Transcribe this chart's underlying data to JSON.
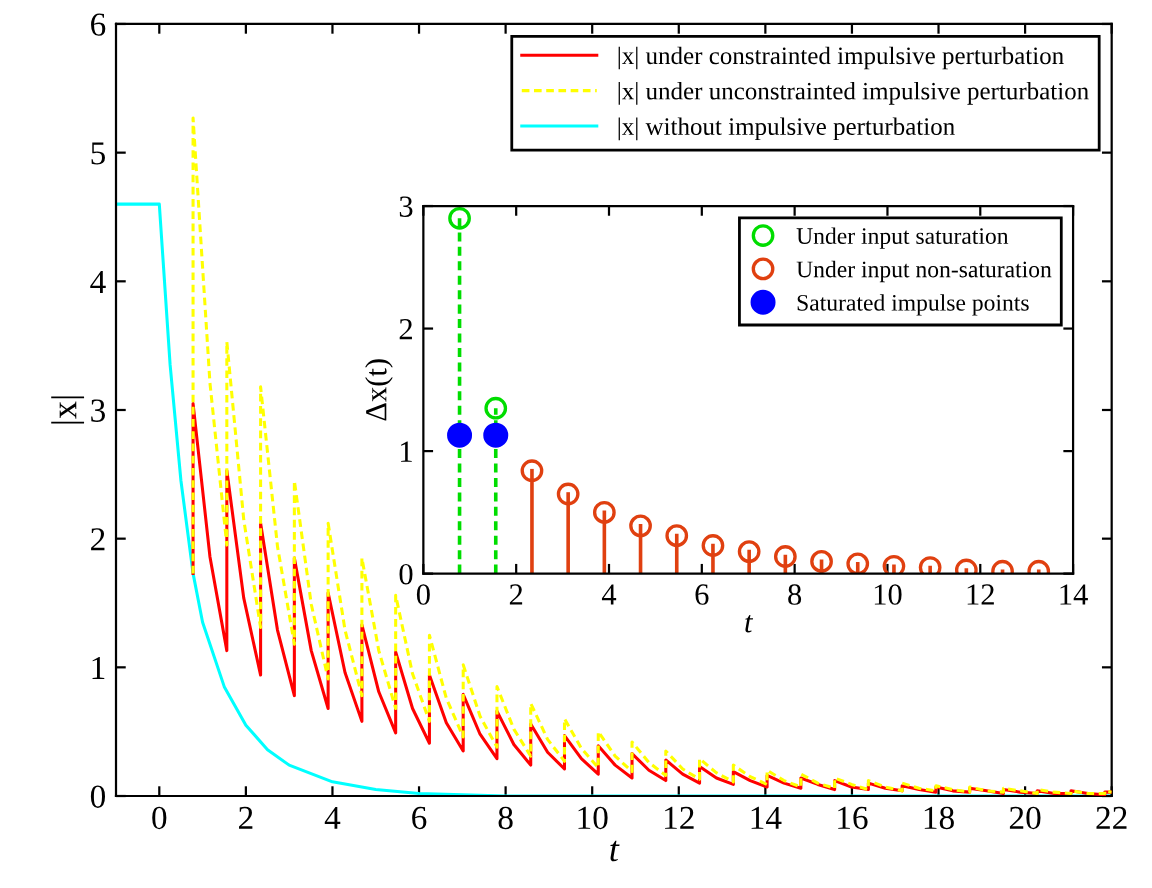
{
  "chart_data": [
    {
      "type": "line",
      "xlabel": "t",
      "ylabel": "|x|",
      "xlim": [
        -1,
        22
      ],
      "ylim": [
        0,
        6
      ],
      "xticks": [
        0,
        2,
        4,
        6,
        8,
        10,
        12,
        14,
        16,
        18,
        20,
        22
      ],
      "yticks": [
        0,
        1,
        2,
        3,
        4,
        5,
        6
      ],
      "legend": "top right",
      "series": [
        {
          "name": "|x| under constrainted impulsive perturbation",
          "color": "#ff0000",
          "line_style": "solid",
          "x": [
            0.78,
            0.78,
            1.17,
            1.56,
            1.56,
            1.95,
            2.34,
            2.34,
            2.73,
            3.12,
            3.12,
            3.51,
            3.9,
            3.9,
            4.29,
            4.68,
            4.68,
            5.07,
            5.46,
            5.46,
            5.85,
            6.24,
            6.24,
            6.63,
            7.02,
            7.02,
            7.41,
            7.8,
            7.8,
            8.19,
            8.58,
            8.58,
            8.97,
            9.36,
            9.36,
            9.75,
            10.14,
            10.14,
            10.53,
            10.92,
            10.92,
            11.31,
            11.7,
            11.7,
            12.09,
            12.48,
            12.48,
            12.87,
            13.26,
            13.26,
            13.65,
            14.04,
            14.04,
            14.43,
            14.82,
            14.82,
            15.21,
            15.6,
            15.6,
            15.99,
            16.38,
            16.38,
            16.77,
            17.16,
            17.16,
            17.55,
            17.94,
            17.94,
            18.33,
            18.72,
            18.72,
            19.11,
            19.5,
            19.5,
            19.89,
            20.28,
            20.28,
            20.67,
            21.06,
            21.06,
            21.45,
            21.84,
            21.84,
            22
          ],
          "values": [
            1.73,
            3.05,
            1.86,
            1.13,
            2.53,
            1.54,
            0.94,
            2.12,
            1.29,
            0.78,
            1.85,
            1.13,
            0.68,
            1.58,
            0.96,
            0.58,
            1.33,
            0.81,
            0.49,
            1.12,
            0.68,
            0.41,
            0.94,
            0.57,
            0.35,
            0.79,
            0.48,
            0.29,
            0.66,
            0.4,
            0.24,
            0.56,
            0.34,
            0.21,
            0.47,
            0.29,
            0.17,
            0.39,
            0.24,
            0.14,
            0.33,
            0.2,
            0.12,
            0.28,
            0.17,
            0.1,
            0.23,
            0.14,
            0.09,
            0.19,
            0.12,
            0.07,
            0.16,
            0.1,
            0.06,
            0.14,
            0.09,
            0.05,
            0.12,
            0.07,
            0.05,
            0.1,
            0.06,
            0.04,
            0.08,
            0.05,
            0.03,
            0.07,
            0.04,
            0.03,
            0.06,
            0.04,
            0.02,
            0.05,
            0.03,
            0.02,
            0.04,
            0.02,
            0.02,
            0.04,
            0.02,
            0.01,
            0.03,
            0.03
          ]
        },
        {
          "name": "|x| under unconstrainted impulsive perturbation",
          "color": "#ffff00",
          "line_style": "dashed",
          "x": [
            0.78,
            0.78,
            1.17,
            1.56,
            1.56,
            1.95,
            2.34,
            2.34,
            2.73,
            3.12,
            3.12,
            3.51,
            3.9,
            3.9,
            4.29,
            4.68,
            4.68,
            5.07,
            5.46,
            5.46,
            5.85,
            6.24,
            6.24,
            6.63,
            7.02,
            7.02,
            7.41,
            7.8,
            7.8,
            8.19,
            8.58,
            8.58,
            8.97,
            9.36,
            9.36,
            9.75,
            10.14,
            10.14,
            10.53,
            10.92,
            10.92,
            11.31,
            11.7,
            11.7,
            12.09,
            12.48,
            12.48,
            12.87,
            13.26,
            13.26,
            13.65,
            14.04,
            14.04,
            14.43,
            14.82,
            14.82,
            15.21,
            15.6,
            15.6,
            15.99,
            16.38,
            16.38,
            16.77,
            17.16,
            17.16,
            17.55,
            17.94,
            17.94,
            18.33,
            18.72,
            18.72,
            19.11,
            19.5,
            19.5,
            19.89,
            20.28,
            20.28,
            20.67,
            21.06,
            21.06,
            21.45,
            21.84,
            21.84,
            22
          ],
          "values": [
            1.73,
            5.27,
            3.21,
            1.95,
            3.53,
            2.15,
            1.31,
            3.18,
            1.94,
            1.18,
            2.45,
            1.49,
            0.91,
            2.12,
            1.29,
            0.78,
            1.85,
            1.13,
            0.68,
            1.56,
            0.95,
            0.58,
            1.25,
            0.76,
            0.46,
            1.02,
            0.62,
            0.38,
            0.85,
            0.52,
            0.31,
            0.72,
            0.44,
            0.27,
            0.6,
            0.37,
            0.22,
            0.5,
            0.31,
            0.19,
            0.42,
            0.26,
            0.16,
            0.35,
            0.21,
            0.13,
            0.29,
            0.18,
            0.11,
            0.24,
            0.15,
            0.09,
            0.2,
            0.12,
            0.07,
            0.17,
            0.1,
            0.06,
            0.14,
            0.09,
            0.05,
            0.12,
            0.07,
            0.04,
            0.1,
            0.06,
            0.04,
            0.08,
            0.05,
            0.03,
            0.07,
            0.04,
            0.03,
            0.06,
            0.04,
            0.02,
            0.05,
            0.03,
            0.02,
            0.04,
            0.02,
            0.02,
            0.04,
            0.03
          ]
        },
        {
          "name": "|x| without impulsive perturbation",
          "color": "#00ffff",
          "line_style": "solid",
          "x": [
            -1,
            0,
            0.25,
            0.5,
            0.78,
            1,
            1.5,
            2,
            2.5,
            3,
            4,
            5,
            6,
            8,
            22
          ],
          "values": [
            4.6,
            4.6,
            3.35,
            2.45,
            1.73,
            1.35,
            0.85,
            0.55,
            0.36,
            0.24,
            0.11,
            0.05,
            0.02,
            0,
            0
          ]
        }
      ]
    },
    {
      "type": "lollipop",
      "xlabel": "t",
      "ylabel": "Δx(t)",
      "xlim": [
        0,
        14
      ],
      "ylim": [
        0,
        3
      ],
      "xticks": [
        0,
        2,
        4,
        6,
        8,
        10,
        12,
        14
      ],
      "yticks": [
        0,
        1,
        2,
        3
      ],
      "legend": "top right",
      "marker": "circle",
      "series": [
        {
          "name": "Under input saturation",
          "type": "lollipop",
          "color": "#00dd00",
          "line_style": "dashed",
          "x": [
            0.78,
            1.56
          ],
          "values": [
            2.9,
            1.35
          ]
        },
        {
          "name": "Under input non-saturation",
          "type": "lollipop",
          "color": "#e04010",
          "line_style": "solid",
          "x": [
            2.34,
            3.12,
            3.9,
            4.68,
            5.46,
            6.24,
            7.02,
            7.8,
            8.58,
            9.36,
            10.14,
            10.92,
            11.7,
            12.48,
            13.26
          ],
          "values": [
            0.84,
            0.65,
            0.5,
            0.39,
            0.31,
            0.23,
            0.18,
            0.14,
            0.1,
            0.08,
            0.06,
            0.05,
            0.03,
            0.02,
            0.02
          ]
        },
        {
          "name": "Saturated impulse points",
          "type": "scatter",
          "color": "#0000ff",
          "x": [
            0.78,
            1.56
          ],
          "values": [
            1.13,
            1.13
          ]
        }
      ]
    }
  ]
}
